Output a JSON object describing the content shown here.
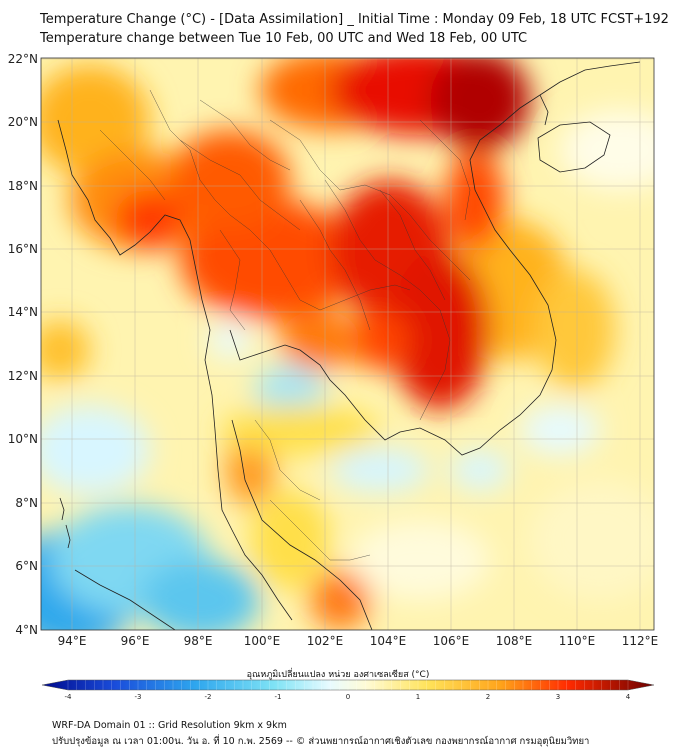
{
  "title_line1": "Temperature Change (°C) - [Data Assimilation] _ Initial Time : Monday 09 Feb, 18 UTC FCST+192",
  "title_line2": "Temperature change between Tue 10 Feb, 00 UTC and Wed 18 Feb, 00 UTC",
  "lat_ticks": [
    "22°N",
    "20°N",
    "18°N",
    "16°N",
    "14°N",
    "12°N",
    "10°N",
    "8°N",
    "6°N",
    "4°N"
  ],
  "lon_ticks": [
    "94°E",
    "96°E",
    "98°E",
    "100°E",
    "102°E",
    "104°E",
    "106°E",
    "108°E",
    "110°E",
    "112°E"
  ],
  "colorbar": {
    "label": "อุณหภูมิเปลี่ยนแปลง หน่วย องศาเซลเซียส (°C)",
    "ticks": [
      "-4",
      "-3",
      "-2",
      "-1",
      "0",
      "1",
      "2",
      "3",
      "4"
    ],
    "range": [
      -4,
      4
    ]
  },
  "footer_line1": "WRF-DA Domain 01 :: Grid Resolution 9km x 9km",
  "footer_line2": "ปรับปรุงข้อมูล ณ เวลา 01:00น. วัน อ. ที่ 10 ก.พ. 2569 -- © ส่วนพยากรณ์อากาศเชิงตัวเลข กองพยากรณ์อากาศ กรมอุตุนิยมวิทยา",
  "colors": {
    "warm_max": "#a00000",
    "warm": "#ff3a00",
    "mild": "#ffd21a",
    "neutral": "#fffbd8",
    "cool": "#5fcfee",
    "cold": "#1a5fd8"
  }
}
